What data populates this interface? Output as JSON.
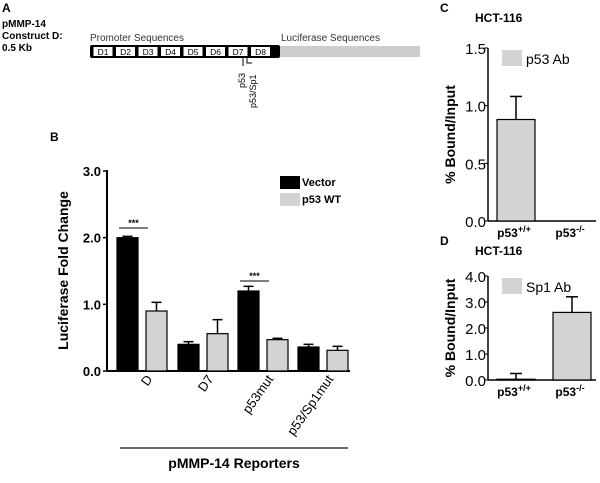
{
  "panel_a": {
    "label": "A",
    "construct_lines": [
      "pMMP-14",
      "Construct D:",
      "0.5 Kb"
    ],
    "promoter_label": "Promoter Sequences",
    "luciferase_label": "Luciferase Sequences",
    "segments": [
      "D1",
      "D2",
      "D3",
      "D4",
      "D5",
      "D6",
      "D7",
      "D8"
    ],
    "site_labels": [
      "p53",
      "p53/Sp1"
    ],
    "colors": {
      "luciferase": "#cccccc",
      "segment_fill": "#ffffff"
    }
  },
  "chart_data": [
    {
      "panel": "B",
      "type": "bar",
      "ylabel": "Luciferase Fold Change",
      "xlabel": "pMMP-14 Reporters",
      "categories": [
        "D",
        "D7",
        "p53mut",
        "p53/Sp1mut"
      ],
      "ylim": [
        0,
        3.0
      ],
      "yticks": [
        "0.0",
        "1.0",
        "2.0",
        "3.0"
      ],
      "legend_position": "top-right",
      "series": [
        {
          "name": "Vector",
          "color": "#000000",
          "values": [
            2.0,
            0.4,
            1.2,
            0.36
          ],
          "errors": [
            0.02,
            0.04,
            0.07,
            0.04
          ]
        },
        {
          "name": "p53 WT",
          "color": "#d3d3d3",
          "values": [
            0.9,
            0.56,
            0.47,
            0.31
          ],
          "errors": [
            0.13,
            0.21,
            0.02,
            0.06
          ]
        }
      ],
      "annotations": [
        {
          "text": "***",
          "category": "D"
        },
        {
          "text": "***",
          "category": "p53mut"
        }
      ]
    },
    {
      "panel": "C",
      "type": "bar",
      "title": "HCT-116",
      "ylabel": "% Bound/Input",
      "categories": [
        "p53+/+",
        "p53-/-"
      ],
      "category_parts": [
        [
          "p53",
          "+/+"
        ],
        [
          "p53",
          "-/-"
        ]
      ],
      "ylim": [
        0,
        1.5
      ],
      "yticks": [
        "0.0",
        "0.5",
        "1.0",
        "1.5"
      ],
      "legend_position": "top",
      "series": [
        {
          "name": "p53 Ab",
          "color": "#d3d3d3",
          "values": [
            0.88,
            0
          ],
          "errors": [
            0.2,
            0
          ]
        }
      ]
    },
    {
      "panel": "D",
      "type": "bar",
      "title": "HCT-116",
      "ylabel": "% Bound/Input",
      "categories": [
        "p53+/+",
        "p53-/-"
      ],
      "category_parts": [
        [
          "p53",
          "+/+"
        ],
        [
          "p53",
          "-/-"
        ]
      ],
      "ylim": [
        0,
        4.0
      ],
      "yticks": [
        "0.0",
        "1.0",
        "2.0",
        "3.0",
        "4.0"
      ],
      "legend_position": "top",
      "series": [
        {
          "name": "Sp1 Ab",
          "color": "#d3d3d3",
          "values": [
            0.03,
            2.6
          ],
          "errors": [
            0.22,
            0.6
          ]
        }
      ]
    }
  ]
}
